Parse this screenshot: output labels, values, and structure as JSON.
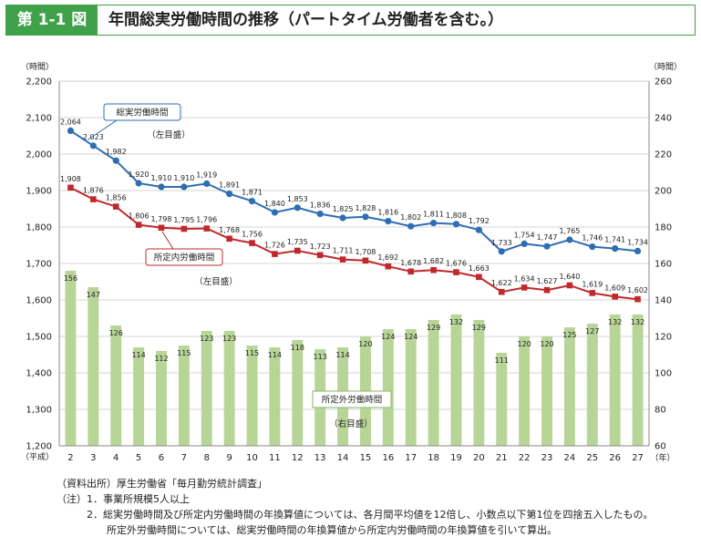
{
  "header": {
    "figure_number": "第 1-1 図",
    "title": "年間総実労働時間の推移（パートタイム労働者を含む。）"
  },
  "chart_data": {
    "type": "bar",
    "x_prefix": "（平成）",
    "x_unit": "（年）",
    "categories": [
      "2",
      "3",
      "4",
      "5",
      "6",
      "7",
      "8",
      "9",
      "10",
      "11",
      "12",
      "13",
      "14",
      "15",
      "16",
      "17",
      "18",
      "19",
      "20",
      "21",
      "22",
      "23",
      "24",
      "25",
      "26",
      "27"
    ],
    "left_axis": {
      "unit": "（時間）",
      "ylim": [
        1200,
        2200
      ],
      "ticks": [
        "1,200",
        "1,300",
        "1,400",
        "1,500",
        "1,600",
        "1,700",
        "1,800",
        "1,900",
        "2,000",
        "2,100",
        "2,200"
      ]
    },
    "right_axis": {
      "unit": "（時間）",
      "ylim": [
        60,
        260
      ],
      "ticks": [
        "60",
        "80",
        "100",
        "120",
        "140",
        "160",
        "180",
        "200",
        "220",
        "240",
        "260"
      ]
    },
    "series": [
      {
        "name": "総実労働時間",
        "axis_note": "（左目盛）",
        "type": "line",
        "axis": "left",
        "color": "#2e6db4",
        "marker": "circle",
        "values": [
          2064,
          2023,
          1982,
          1920,
          1910,
          1910,
          1919,
          1891,
          1871,
          1840,
          1853,
          1836,
          1825,
          1828,
          1816,
          1802,
          1811,
          1808,
          1792,
          1733,
          1754,
          1747,
          1765,
          1746,
          1741,
          1734
        ],
        "labels": [
          "2,064",
          "2,023",
          "1,982",
          "1,920",
          "1,910",
          "1,910",
          "1,919",
          "1,891",
          "1,871",
          "1,840",
          "1,853",
          "1,836",
          "1,825",
          "1,828",
          "1,816",
          "1,802",
          "1,811",
          "1,808",
          "1,792",
          "1,733",
          "1,754",
          "1,747",
          "1,765",
          "1,746",
          "1,741",
          "1,734"
        ]
      },
      {
        "name": "所定内労働時間",
        "axis_note": "（左目盛）",
        "type": "line",
        "axis": "left",
        "color": "#c0282b",
        "marker": "square",
        "values": [
          1908,
          1876,
          1856,
          1806,
          1798,
          1795,
          1796,
          1768,
          1756,
          1726,
          1735,
          1723,
          1711,
          1708,
          1692,
          1678,
          1682,
          1676,
          1663,
          1622,
          1634,
          1627,
          1640,
          1619,
          1609,
          1602
        ],
        "labels": [
          "1,908",
          "1,876",
          "1,856",
          "1,806",
          "1,798",
          "1,795",
          "1,796",
          "1,768",
          "1,756",
          "1,726",
          "1,735",
          "1,723",
          "1,711",
          "1,708",
          "1,692",
          "1,678",
          "1,682",
          "1,676",
          "1,663",
          "1,622",
          "1,634",
          "1,627",
          "1,640",
          "1,619",
          "1,609",
          "1,602"
        ]
      },
      {
        "name": "所定外労働時間",
        "axis_note": "（右目盛）",
        "type": "bar",
        "axis": "right",
        "color": "#b8d598",
        "values": [
          156,
          147,
          126,
          114,
          112,
          115,
          123,
          123,
          115,
          114,
          118,
          113,
          114,
          120,
          124,
          124,
          129,
          132,
          129,
          111,
          120,
          120,
          125,
          127,
          132,
          132
        ],
        "labels": [
          "156",
          "147",
          "126",
          "114",
          "112",
          "115",
          "123",
          "123",
          "115",
          "114",
          "118",
          "113",
          "114",
          "120",
          "124",
          "124",
          "129",
          "132",
          "129",
          "111",
          "120",
          "120",
          "125",
          "127",
          "132",
          "132"
        ]
      }
    ],
    "grid": true
  },
  "notes": [
    "（資料出所）厚生労働省「毎月勤労統計調査」",
    "（注）1．事業所規模5人以上",
    "　　　2．総実労働時間及び所定内労働時間の年換算値については、各月間平均値を12倍し、小数点以下第1位を四捨五入したもの。",
    "　　　　　所定外労働時間については、総実労働時間の年換算値から所定内労働時間の年換算値を引いて算出。"
  ]
}
